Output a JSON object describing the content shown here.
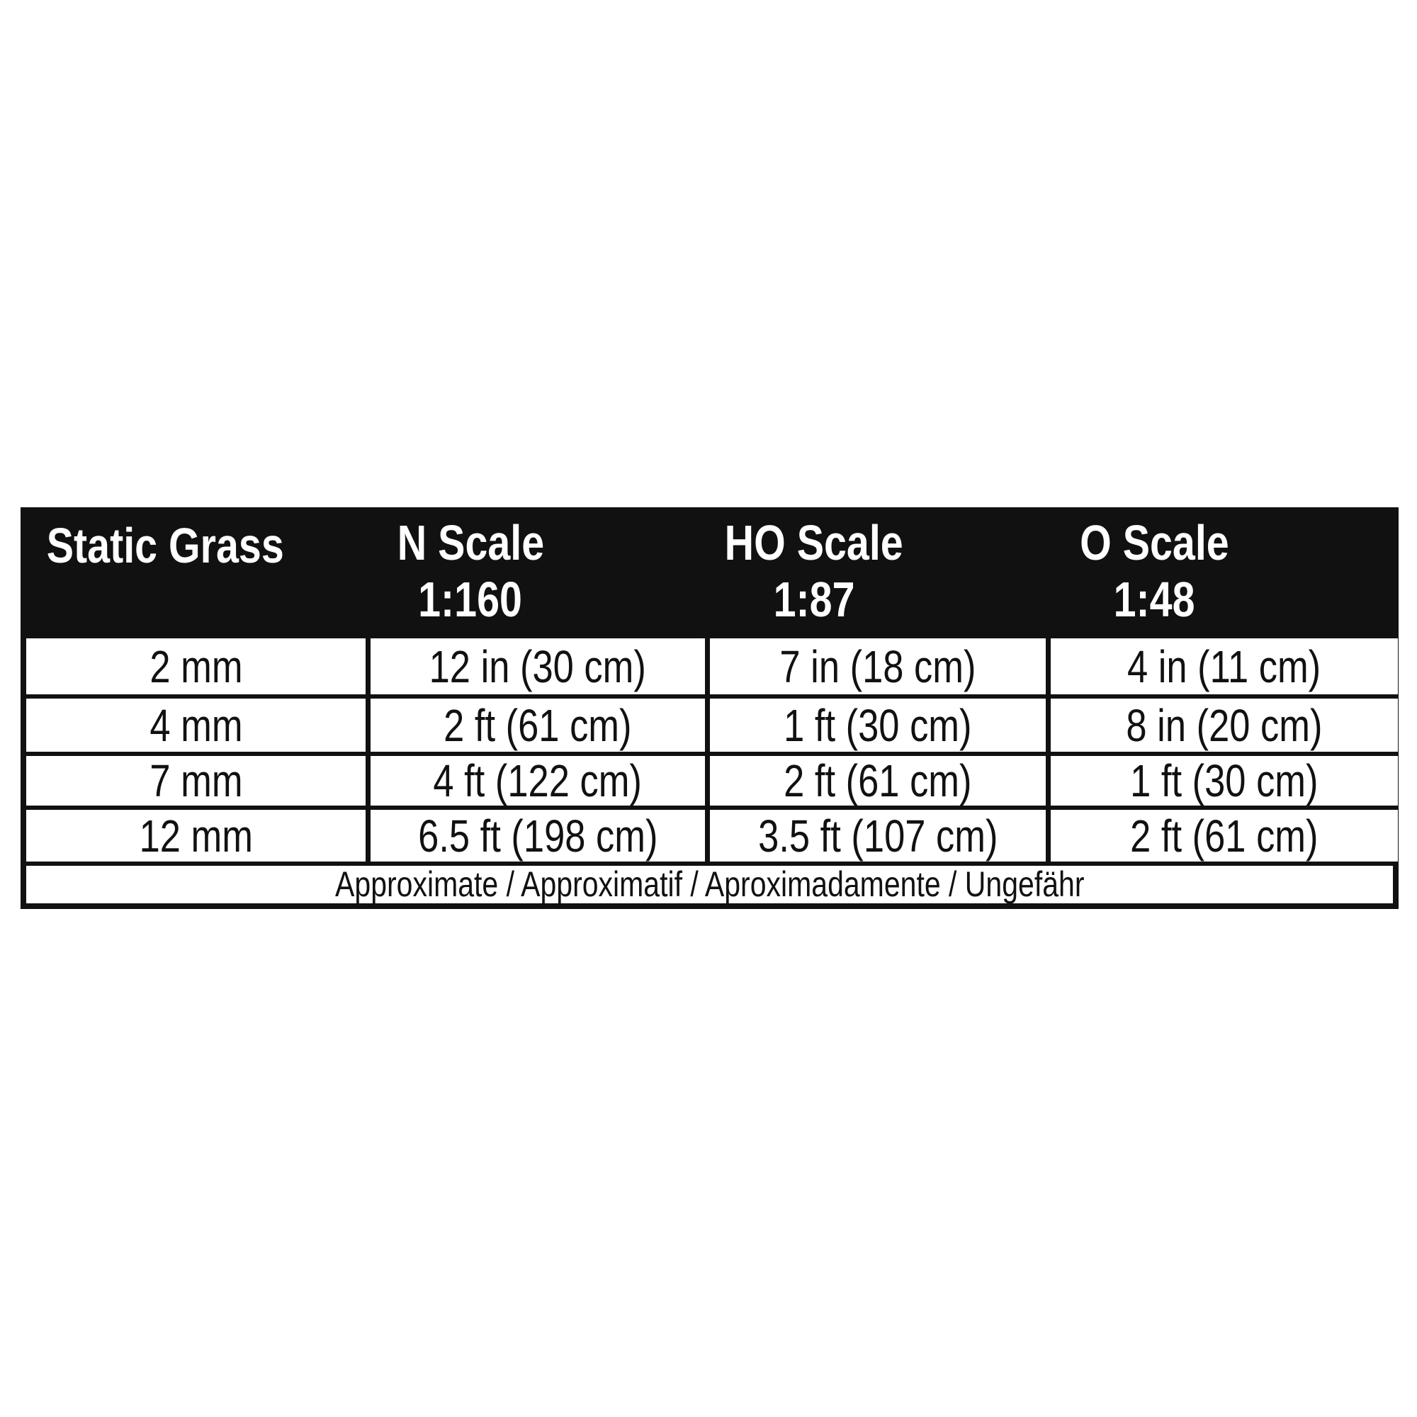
{
  "table": {
    "headers": [
      {
        "line1": "Static Grass",
        "line2": ""
      },
      {
        "line1": "N Scale",
        "line2": "1:160"
      },
      {
        "line1": "HO Scale",
        "line2": "1:87"
      },
      {
        "line1": "O Scale",
        "line2": "1:48"
      }
    ],
    "rows": [
      [
        "2 mm",
        "12 in (30 cm)",
        "7 in (18 cm)",
        "4 in (11 cm)"
      ],
      [
        "4 mm",
        "2 ft (61 cm)",
        "1 ft (30 cm)",
        "8 in (20 cm)"
      ],
      [
        "7 mm",
        "4 ft (122 cm)",
        "2 ft (61 cm)",
        "1 ft (30 cm)"
      ],
      [
        "12 mm",
        "6.5 ft (198 cm)",
        "3.5 ft (107 cm)",
        "2 ft (61 cm)"
      ]
    ],
    "footer": "Approximate / Approximatif / Aproximadamente / Ungefähr"
  }
}
